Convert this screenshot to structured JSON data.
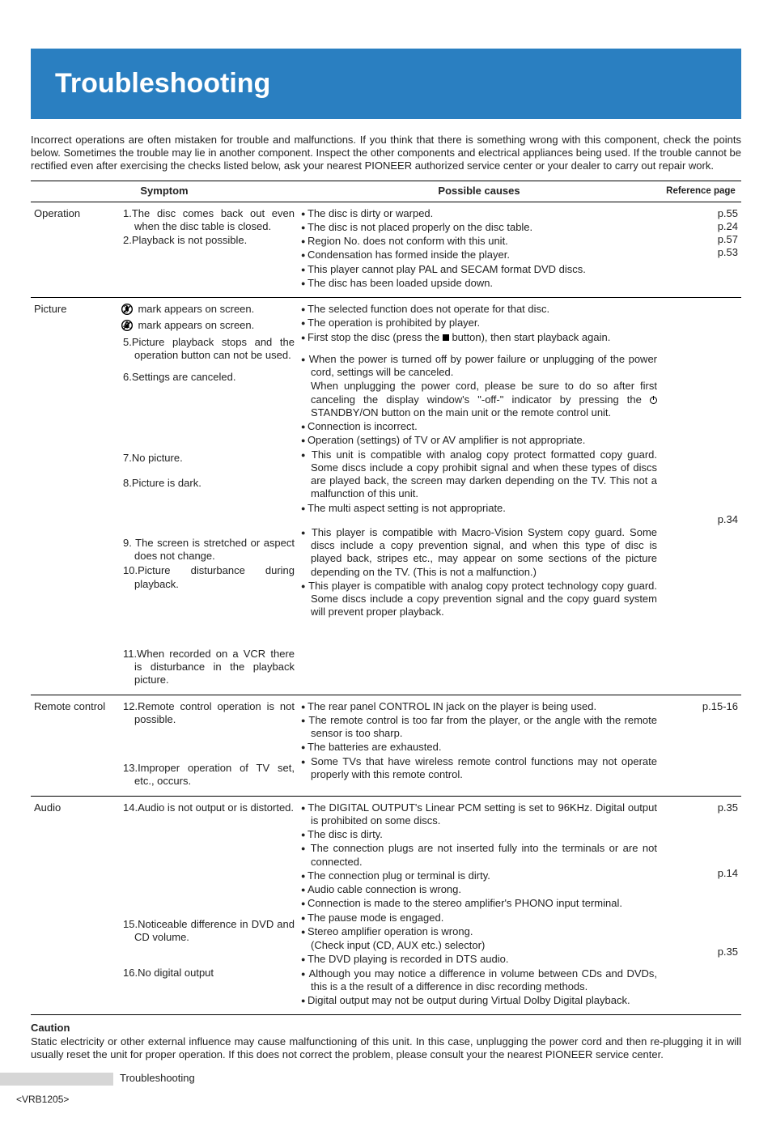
{
  "title": "Troubleshooting",
  "intro": "Incorrect operations are often mistaken for trouble and malfunctions. If you think that there is something wrong with this component, check the points below. Sometimes the trouble may lie in another component. Inspect the other components and electrical appliances being used. If the trouble cannot be rectified even after exercising the checks listed below, ask your nearest PIONEER authorized service center or your dealer to carry out repair work.",
  "headers": {
    "symptom": "Symptom",
    "causes": "Possible causes",
    "ref": "Reference page"
  },
  "rows": [
    {
      "category": "Operation",
      "symptoms": [
        {
          "n": "1.",
          "t": "The disc comes back out even when the disc table is closed."
        },
        {
          "n": "2.",
          "t": "Playback is not possible."
        }
      ],
      "causes": [
        "The disc is dirty or warped.",
        "The disc is not placed properly on the disc table.",
        "Region No. does not conform with this unit.",
        "Condensation has formed inside the player.",
        "This player cannot play PAL and SECAM format DVD discs.",
        "The disc has been loaded upside down."
      ],
      "refs": "p.55\np.24\np.57\np.53"
    },
    {
      "category": "Picture",
      "symptoms": [
        {
          "n": "3.",
          "t": " mark appears on screen.",
          "icon": "hand"
        },
        {
          "n": "4.",
          "t": " mark appears on screen.",
          "icon": "lock"
        },
        {
          "n": "5.",
          "t": "Picture playback stops and the operation button can not be used."
        },
        {
          "n": "6.",
          "t": "Settings are canceled.",
          "cls": "gap"
        },
        {
          "n": "7.",
          "t": "No picture.",
          "cls": "gap-lg"
        },
        {
          "n": "8.",
          "t": "Picture is dark.",
          "cls": "gap-8"
        },
        {
          "n": "9.",
          "t": " The screen is stretched or aspect does not change.",
          "cls": "gap-9"
        },
        {
          "n": "10.",
          "t": "Picture disturbance during playback.",
          "cls": "gap-10"
        },
        {
          "n": "11.",
          "t": "When recorded on a VCR there is disturbance in the playback picture.",
          "cls": "gap-11"
        }
      ],
      "causes_html": true,
      "refs": "\n\n\n\n\n\n\n\n\n\n\n\n\n\n\n\np.34"
    },
    {
      "category": "Remote control",
      "symptoms": [
        {
          "n": "12.",
          "t": "Remote control operation is not possible."
        },
        {
          "n": "13.",
          "t": "Improper operation of TV set, etc., occurs.",
          "cls": "gap-13"
        }
      ],
      "causes": [
        "The rear panel CONTROL IN jack on the player is being used.",
        "The remote control is too far from the player, or the angle with the remote sensor is too sharp.",
        "The batteries are exhausted.",
        "Some TVs that have wireless remote control functions may not operate properly with this remote control."
      ],
      "refs": "p.15-16"
    },
    {
      "category": "Audio",
      "symptoms": [
        {
          "n": "14.",
          "t": "Audio is not output or is distorted."
        },
        {
          "n": "15.",
          "t": "Noticeable difference in DVD and CD volume.",
          "cls": "gap-15"
        },
        {
          "n": "16.",
          "t": "No digital output",
          "cls": "gap-16"
        }
      ],
      "causes_html2": true,
      "refs": "p.35\n\n\n\n\np.14\n\n\n\n\n\np.35"
    }
  ],
  "picture_causes": [
    "The selected function does not operate for that disc.",
    "The operation is prohibited by player.",
    "First stop the disc (press the ■ button), then start playback again.",
    "When the power is turned off by power failure or unplugging of the power cord, settings will be canceled.\nWhen unplugging the power cord, please be sure to do so after first canceling the display window's \"-off-\" indicator by pressing the ⏻ STANDBY/ON button on the main unit or the remote control unit.",
    "Connection is incorrect.",
    "Operation (settings) of TV or AV amplifier is not appropriate.",
    "This unit is compatible with analog copy protect formatted copy guard. Some discs include a copy prohibit signal and when these types of discs are played back, the screen may darken depending on the TV. This not a malfunction of this unit.",
    "The multi aspect setting is not appropriate.",
    "This player is compatible with Macro-Vision System copy guard. Some discs include a copy prevention signal, and when this type of disc is played back, stripes etc., may appear on some sections of the picture depending on the TV. (This is not a malfunction.)",
    "This player is compatible with analog copy protect technology copy guard. Some discs include a copy prevention signal and the copy guard system will prevent proper playback."
  ],
  "audio_causes": [
    "The DIGITAL OUTPUT's Linear PCM setting is set to 96KHz. Digital output is prohibited on some discs.",
    "The disc is dirty.",
    "The connection plugs are not inserted fully into the terminals or are not connected.",
    "The connection plug or terminal is dirty.",
    "Audio cable connection is wrong.",
    "Connection is made to the stereo amplifier's PHONO input terminal.",
    "The pause mode is engaged.",
    "Stereo amplifier operation is wrong.\n(Check input (CD, AUX etc.) selector)",
    "The DVD playing is recorded in DTS audio.",
    "Although you may notice a difference in volume between CDs and DVDs, this is a the result of a difference in disc recording methods.",
    "Digital output may not be output during Virtual Dolby Digital playback."
  ],
  "caution_label": "Caution",
  "caution_text": "Static electricity or other external influence may cause malfunctioning of this unit. In this case, unplugging the power cord and then re-plugging it in will usually reset the unit for proper operation. If this does not correct the problem, please consult your the nearest PIONEER service center.",
  "footer_section": "Troubleshooting",
  "doc_id": "<VRB1205>",
  "colors": {
    "header_bg": "#2a7fc1",
    "text": "#222222",
    "footer_grey": "#d6d6d6"
  }
}
